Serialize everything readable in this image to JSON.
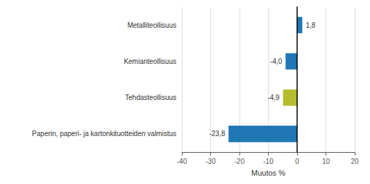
{
  "chart_data": {
    "type": "bar",
    "orientation": "horizontal",
    "categories": [
      "Paperin, paperi- ja kartonkituotteiden valmistus",
      "Tehdasteollisuus",
      "Kemianteollisuus",
      "Metalliteollisuus"
    ],
    "values": [
      -23.8,
      -4.9,
      -4.0,
      1.8
    ],
    "value_labels": [
      "-23,8",
      "-4,9",
      "-4,0",
      "1,8"
    ],
    "data_labels": true,
    "colors": [
      "#2077b4",
      "#b5bd2e",
      "#2077b4",
      "#2077b4"
    ],
    "xlabel": "Muutos %",
    "xlim": [
      -40,
      20
    ],
    "xticks": [
      -40,
      -30,
      -20,
      -10,
      0,
      10,
      20
    ],
    "grid": true
  }
}
